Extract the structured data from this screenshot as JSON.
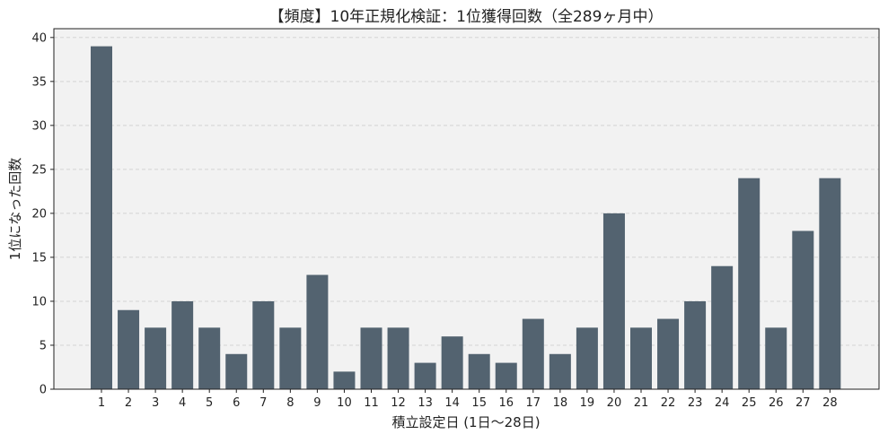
{
  "chart_data": {
    "type": "bar",
    "title": "【頻度】10年正規化検証：1位獲得回数（全289ヶ月中）",
    "xlabel": "積立設定日 (1日〜28日)",
    "ylabel": "1位になった回数",
    "categories": [
      "1",
      "2",
      "3",
      "4",
      "5",
      "6",
      "7",
      "8",
      "9",
      "10",
      "11",
      "12",
      "13",
      "14",
      "15",
      "16",
      "17",
      "18",
      "19",
      "20",
      "21",
      "22",
      "23",
      "24",
      "25",
      "26",
      "27",
      "28"
    ],
    "values": [
      39,
      9,
      7,
      10,
      7,
      4,
      10,
      7,
      13,
      2,
      7,
      7,
      3,
      6,
      4,
      3,
      8,
      4,
      7,
      20,
      7,
      8,
      10,
      14,
      24,
      7,
      18,
      24
    ],
    "ylim": [
      0,
      41
    ],
    "yticks": [
      0,
      5,
      10,
      15,
      20,
      25,
      30,
      35,
      40
    ],
    "grid": "horizontal-dashed",
    "legend": "none",
    "bar_color": "#536370",
    "background_color": "#f2f2f2",
    "grid_color": "#d4d4d4"
  }
}
